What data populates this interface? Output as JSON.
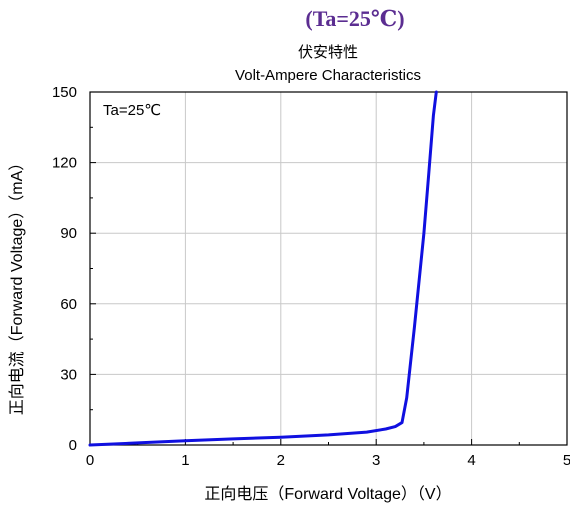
{
  "heading": "(Ta=25℃)",
  "chart_data": {
    "type": "line",
    "title_cn": "伏安特性",
    "title": "Volt-Ampere Characteristics",
    "annotation": "Ta=25℃",
    "xlabel": "正向电压（Forward Voltage）（V）",
    "ylabel": "正向电流（Forward Voltage）（mA）",
    "xlim": [
      0,
      5
    ],
    "ylim": [
      0,
      150
    ],
    "xticks": [
      0,
      1,
      2,
      3,
      4,
      5
    ],
    "yticks": [
      0,
      30,
      60,
      90,
      120,
      150
    ],
    "grid": true,
    "series": [
      {
        "color": "#1010e0",
        "x": [
          0,
          0.5,
          1.0,
          1.5,
          2.0,
          2.5,
          2.9,
          3.1,
          3.2,
          3.27,
          3.32,
          3.4,
          3.5,
          3.55,
          3.6,
          3.63
        ],
        "y": [
          0,
          0.9,
          1.8,
          2.6,
          3.3,
          4.3,
          5.5,
          6.8,
          7.8,
          9.5,
          20,
          50,
          90,
          115,
          140,
          150
        ]
      }
    ]
  }
}
